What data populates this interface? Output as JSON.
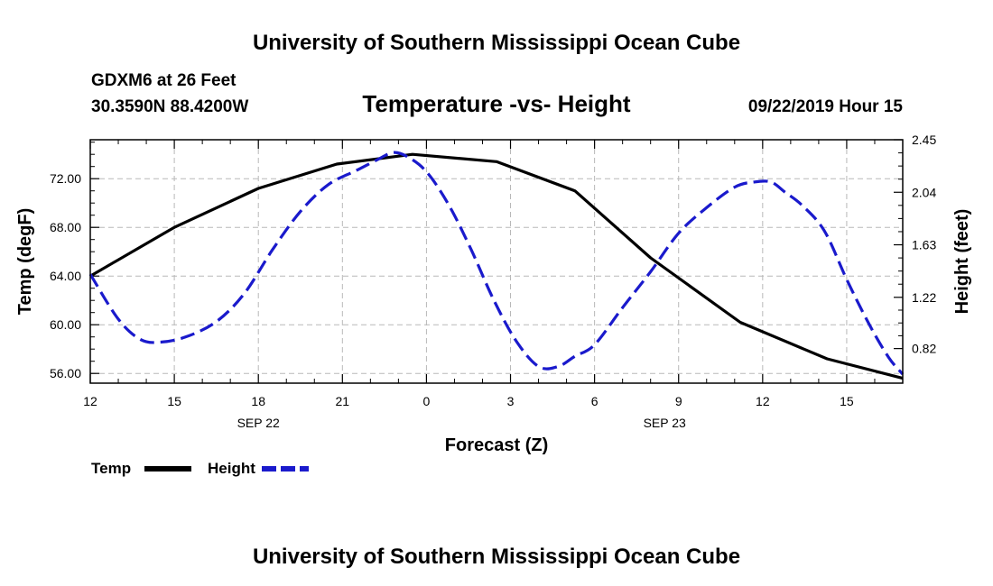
{
  "header": {
    "title": "University of Southern Mississippi Ocean Cube",
    "station": "GDXM6 at 26 Feet",
    "coords": "30.3590N 88.4200W",
    "subtitle": "Temperature -vs- Height",
    "datetime": "09/22/2019 Hour 15"
  },
  "footer": {
    "title": "University of Southern Mississippi Ocean Cube"
  },
  "chart_data": {
    "type": "line",
    "title": "Temperature -vs- Height",
    "xlabel": "Forecast (Z)",
    "ylabel_left": "Temp (degF)",
    "ylabel_right": "Height (feet)",
    "x_unit": "hours since 09/22/2019 12Z",
    "xlim": [
      0,
      29
    ],
    "ylim_left": [
      55.2,
      75.2
    ],
    "ylim_right": [
      0.55,
      2.45
    ],
    "xticks": [
      {
        "x": 0,
        "label": "12"
      },
      {
        "x": 3,
        "label": "15"
      },
      {
        "x": 6,
        "label": "18"
      },
      {
        "x": 9,
        "label": "21"
      },
      {
        "x": 12,
        "label": "0"
      },
      {
        "x": 15,
        "label": "3"
      },
      {
        "x": 18,
        "label": "6"
      },
      {
        "x": 21,
        "label": "9"
      },
      {
        "x": 24,
        "label": "12"
      },
      {
        "x": 27,
        "label": "15"
      }
    ],
    "date_labels": [
      {
        "x": 6,
        "label": "SEP 22"
      },
      {
        "x": 20.5,
        "label": "SEP 23"
      }
    ],
    "yticks_left": [
      {
        "value": 56,
        "label": "56.00"
      },
      {
        "value": 60,
        "label": "60.00"
      },
      {
        "value": 64,
        "label": "64.00"
      },
      {
        "value": 68,
        "label": "68.00"
      },
      {
        "value": 72,
        "label": "72.00"
      }
    ],
    "yticks_right": [
      {
        "value": 0.82,
        "label": "0.82"
      },
      {
        "value": 1.22,
        "label": "1.22"
      },
      {
        "value": 1.63,
        "label": "1.63"
      },
      {
        "value": 2.04,
        "label": "2.04"
      },
      {
        "value": 2.45,
        "label": "2.45"
      }
    ],
    "series": [
      {
        "name": "Temp",
        "axis": "left",
        "color": "#000000",
        "dashed": false,
        "x": [
          0,
          3,
          6,
          8.8,
          11.5,
          14.5,
          17.3,
          20,
          23.2,
          26.3,
          29
        ],
        "y": [
          64.0,
          68.0,
          71.2,
          73.2,
          74.0,
          73.4,
          71.0,
          65.5,
          60.2,
          57.2,
          55.6
        ]
      },
      {
        "name": "Height",
        "axis": "right",
        "color": "#1a1acc",
        "dashed": true,
        "x": [
          0,
          1,
          1.8,
          2.5,
          3.4,
          4.5,
          5.5,
          6.5,
          7.5,
          8.5,
          9.5,
          10.3,
          10.8,
          11.3,
          12,
          12.8,
          13.6,
          14.4,
          15.2,
          16,
          16.7,
          17.3,
          18,
          19,
          20,
          21,
          22,
          23,
          23.7,
          24.3,
          24.8,
          25.4,
          26.2,
          27,
          27.8,
          28.5,
          29
        ],
        "y": [
          1.4,
          1.05,
          0.89,
          0.87,
          0.91,
          1.03,
          1.25,
          1.59,
          1.89,
          2.1,
          2.21,
          2.3,
          2.35,
          2.32,
          2.2,
          1.94,
          1.59,
          1.2,
          0.88,
          0.68,
          0.68,
          0.76,
          0.85,
          1.14,
          1.42,
          1.72,
          1.92,
          2.08,
          2.12,
          2.12,
          2.04,
          1.94,
          1.74,
          1.36,
          1.01,
          0.75,
          0.62
        ]
      }
    ],
    "legend": [
      {
        "label": "Temp",
        "color": "#000000",
        "dashed": false
      },
      {
        "label": "Height",
        "color": "#1a1acc",
        "dashed": true
      }
    ],
    "grid": true,
    "legend_position": "bottom-left"
  }
}
